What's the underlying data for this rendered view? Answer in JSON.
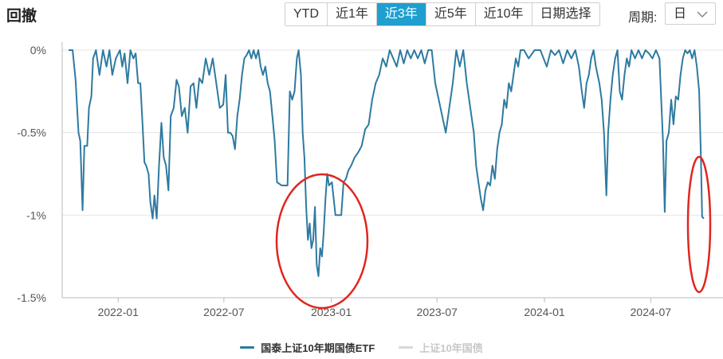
{
  "header": {
    "title": "回撤",
    "range_buttons": [
      {
        "label": "YTD",
        "active": false
      },
      {
        "label": "近1年",
        "active": false
      },
      {
        "label": "近3年",
        "active": true
      },
      {
        "label": "近5年",
        "active": false
      },
      {
        "label": "近10年",
        "active": false
      },
      {
        "label": "日期选择",
        "active": false
      }
    ],
    "period_label": "周期:",
    "period_value": "日"
  },
  "colors": {
    "series": "#2e7aa1",
    "series_inactive": "#d9d9d9",
    "grid": "#e6e6e6",
    "axis": "#bbbbbb",
    "annotation": "#e0261f",
    "active_button": "#1e9fd0"
  },
  "chart_data": {
    "type": "line",
    "title": "",
    "xlabel": "",
    "ylabel": "",
    "x_range": [
      "2021-10-08",
      "2024-09-30"
    ],
    "x_ticks": [
      "2022-01",
      "2022-07",
      "2023-01",
      "2023-07",
      "2024-01",
      "2024-07"
    ],
    "y_ticks": [
      "0%",
      "-0.5%",
      "-1%",
      "-1.5%"
    ],
    "ylim": [
      -1.5,
      0
    ],
    "grid": true,
    "legend_position": "bottom",
    "series": [
      {
        "name": "国泰上证10年期国债ETF",
        "active": true,
        "points": [
          [
            "2021-10-08",
            0
          ],
          [
            "2021-10-15",
            0
          ],
          [
            "2021-10-20",
            -0.18
          ],
          [
            "2021-10-25",
            -0.5
          ],
          [
            "2021-10-28",
            -0.55
          ],
          [
            "2021-11-01",
            -0.97
          ],
          [
            "2021-11-04",
            -0.58
          ],
          [
            "2021-11-09",
            -0.58
          ],
          [
            "2021-11-12",
            -0.35
          ],
          [
            "2021-11-16",
            -0.28
          ],
          [
            "2021-11-19",
            -0.05
          ],
          [
            "2021-11-24",
            0
          ],
          [
            "2021-11-30",
            -0.15
          ],
          [
            "2021-12-06",
            0
          ],
          [
            "2021-12-12",
            -0.1
          ],
          [
            "2021-12-17",
            0
          ],
          [
            "2021-12-22",
            -0.15
          ],
          [
            "2021-12-28",
            -0.05
          ],
          [
            "2022-01-04",
            0
          ],
          [
            "2022-01-08",
            -0.1
          ],
          [
            "2022-01-12",
            -0.02
          ],
          [
            "2022-01-17",
            -0.2
          ],
          [
            "2022-01-22",
            0
          ],
          [
            "2022-01-27",
            -0.05
          ],
          [
            "2022-01-31",
            -0.02
          ],
          [
            "2022-02-04",
            -0.2
          ],
          [
            "2022-02-08",
            -0.2
          ],
          [
            "2022-02-11",
            -0.4
          ],
          [
            "2022-02-15",
            -0.68
          ],
          [
            "2022-02-18",
            -0.7
          ],
          [
            "2022-02-22",
            -0.75
          ],
          [
            "2022-02-25",
            -0.92
          ],
          [
            "2022-03-01",
            -1.02
          ],
          [
            "2022-03-04",
            -0.88
          ],
          [
            "2022-03-08",
            -1.02
          ],
          [
            "2022-03-12",
            -0.7
          ],
          [
            "2022-03-16",
            -0.44
          ],
          [
            "2022-03-20",
            -0.65
          ],
          [
            "2022-03-24",
            -0.7
          ],
          [
            "2022-03-28",
            -0.85
          ],
          [
            "2022-04-01",
            -0.4
          ],
          [
            "2022-04-06",
            -0.35
          ],
          [
            "2022-04-11",
            -0.18
          ],
          [
            "2022-04-15",
            -0.22
          ],
          [
            "2022-04-20",
            -0.4
          ],
          [
            "2022-04-25",
            -0.35
          ],
          [
            "2022-04-30",
            -0.5
          ],
          [
            "2022-05-05",
            -0.22
          ],
          [
            "2022-05-10",
            -0.2
          ],
          [
            "2022-05-15",
            -0.35
          ],
          [
            "2022-05-20",
            -0.17
          ],
          [
            "2022-05-25",
            -0.2
          ],
          [
            "2022-05-31",
            -0.05
          ],
          [
            "2022-06-06",
            -0.15
          ],
          [
            "2022-06-12",
            -0.05
          ],
          [
            "2022-06-18",
            -0.2
          ],
          [
            "2022-06-24",
            -0.35
          ],
          [
            "2022-06-30",
            -0.33
          ],
          [
            "2022-07-04",
            -0.15
          ],
          [
            "2022-07-08",
            -0.5
          ],
          [
            "2022-07-12",
            -0.5
          ],
          [
            "2022-07-16",
            -0.52
          ],
          [
            "2022-07-20",
            -0.6
          ],
          [
            "2022-07-24",
            -0.4
          ],
          [
            "2022-07-28",
            -0.3
          ],
          [
            "2022-08-01",
            -0.15
          ],
          [
            "2022-08-05",
            -0.05
          ],
          [
            "2022-08-09",
            -0.03
          ],
          [
            "2022-08-13",
            0
          ],
          [
            "2022-08-17",
            -0.05
          ],
          [
            "2022-08-21",
            0
          ],
          [
            "2022-08-25",
            -0.05
          ],
          [
            "2022-08-29",
            0
          ],
          [
            "2022-09-02",
            -0.1
          ],
          [
            "2022-09-06",
            -0.15
          ],
          [
            "2022-09-10",
            -0.1
          ],
          [
            "2022-09-14",
            -0.2
          ],
          [
            "2022-09-18",
            -0.25
          ],
          [
            "2022-09-22",
            -0.4
          ],
          [
            "2022-09-26",
            -0.55
          ],
          [
            "2022-09-30",
            -0.8
          ],
          [
            "2022-10-08",
            -0.82
          ],
          [
            "2022-10-18",
            -0.82
          ],
          [
            "2022-10-22",
            -0.25
          ],
          [
            "2022-10-26",
            -0.3
          ],
          [
            "2022-10-30",
            -0.25
          ],
          [
            "2022-11-03",
            -0.05
          ],
          [
            "2022-11-06",
            0
          ],
          [
            "2022-11-10",
            -0.15
          ],
          [
            "2022-11-13",
            -0.5
          ],
          [
            "2022-11-16",
            -0.65
          ],
          [
            "2022-11-19",
            -0.95
          ],
          [
            "2022-11-22",
            -1.15
          ],
          [
            "2022-11-25",
            -1.05
          ],
          [
            "2022-11-28",
            -1.2
          ],
          [
            "2022-12-01",
            -1.15
          ],
          [
            "2022-12-04",
            -0.95
          ],
          [
            "2022-12-07",
            -1.3
          ],
          [
            "2022-12-10",
            -1.37
          ],
          [
            "2022-12-13",
            -1.2
          ],
          [
            "2022-12-16",
            -1.25
          ],
          [
            "2022-12-19",
            -1.1
          ],
          [
            "2022-12-22",
            -0.9
          ],
          [
            "2022-12-25",
            -0.75
          ],
          [
            "2022-12-28",
            -0.82
          ],
          [
            "2023-01-02",
            -0.8
          ],
          [
            "2023-01-05",
            -0.9
          ],
          [
            "2023-01-08",
            -1.0
          ],
          [
            "2023-01-18",
            -1.0
          ],
          [
            "2023-01-22",
            -0.8
          ],
          [
            "2023-01-26",
            -0.78
          ],
          [
            "2023-01-30",
            -0.73
          ],
          [
            "2023-02-04",
            -0.7
          ],
          [
            "2023-02-10",
            -0.65
          ],
          [
            "2023-02-16",
            -0.62
          ],
          [
            "2023-02-22",
            -0.58
          ],
          [
            "2023-02-28",
            -0.48
          ],
          [
            "2023-03-06",
            -0.45
          ],
          [
            "2023-03-12",
            -0.3
          ],
          [
            "2023-03-18",
            -0.2
          ],
          [
            "2023-03-24",
            -0.15
          ],
          [
            "2023-03-30",
            -0.05
          ],
          [
            "2023-04-05",
            -0.1
          ],
          [
            "2023-04-11",
            0
          ],
          [
            "2023-04-17",
            -0.05
          ],
          [
            "2023-04-23",
            -0.1
          ],
          [
            "2023-04-29",
            0
          ],
          [
            "2023-05-05",
            -0.08
          ],
          [
            "2023-05-11",
            0
          ],
          [
            "2023-05-17",
            -0.05
          ],
          [
            "2023-05-23",
            0
          ],
          [
            "2023-05-29",
            -0.05
          ],
          [
            "2023-06-04",
            0
          ],
          [
            "2023-06-10",
            -0.08
          ],
          [
            "2023-06-16",
            0
          ],
          [
            "2023-06-22",
            0
          ],
          [
            "2023-06-28",
            -0.2
          ],
          [
            "2023-07-04",
            -0.3
          ],
          [
            "2023-07-10",
            -0.4
          ],
          [
            "2023-07-16",
            -0.5
          ],
          [
            "2023-07-22",
            -0.35
          ],
          [
            "2023-07-28",
            -0.2
          ],
          [
            "2023-08-03",
            0
          ],
          [
            "2023-08-09",
            -0.1
          ],
          [
            "2023-08-15",
            0
          ],
          [
            "2023-08-21",
            -0.2
          ],
          [
            "2023-08-27",
            -0.35
          ],
          [
            "2023-09-02",
            -0.5
          ],
          [
            "2023-09-06",
            -0.7
          ],
          [
            "2023-09-10",
            -0.8
          ],
          [
            "2023-09-14",
            -0.9
          ],
          [
            "2023-09-18",
            -0.97
          ],
          [
            "2023-09-22",
            -0.85
          ],
          [
            "2023-09-26",
            -0.8
          ],
          [
            "2023-09-30",
            -0.82
          ],
          [
            "2023-10-04",
            -0.7
          ],
          [
            "2023-10-08",
            -0.78
          ],
          [
            "2023-10-12",
            -0.6
          ],
          [
            "2023-10-16",
            -0.5
          ],
          [
            "2023-10-20",
            -0.45
          ],
          [
            "2023-10-24",
            -0.3
          ],
          [
            "2023-10-28",
            -0.35
          ],
          [
            "2023-11-01",
            -0.2
          ],
          [
            "2023-11-05",
            -0.25
          ],
          [
            "2023-11-09",
            -0.15
          ],
          [
            "2023-11-13",
            -0.05
          ],
          [
            "2023-11-17",
            -0.1
          ],
          [
            "2023-11-21",
            0
          ],
          [
            "2023-11-27",
            0
          ],
          [
            "2023-12-05",
            -0.05
          ],
          [
            "2023-12-15",
            0
          ],
          [
            "2023-12-25",
            0
          ],
          [
            "2024-01-05",
            -0.1
          ],
          [
            "2024-01-12",
            0
          ],
          [
            "2024-01-19",
            -0.03
          ],
          [
            "2024-01-26",
            0
          ],
          [
            "2024-02-02",
            -0.08
          ],
          [
            "2024-02-09",
            0
          ],
          [
            "2024-02-16",
            -0.05
          ],
          [
            "2024-02-23",
            0
          ],
          [
            "2024-02-29",
            -0.1
          ],
          [
            "2024-03-05",
            -0.25
          ],
          [
            "2024-03-09",
            -0.35
          ],
          [
            "2024-03-13",
            -0.2
          ],
          [
            "2024-03-17",
            -0.15
          ],
          [
            "2024-03-21",
            -0.05
          ],
          [
            "2024-03-25",
            0
          ],
          [
            "2024-03-29",
            -0.1
          ],
          [
            "2024-04-04",
            -0.2
          ],
          [
            "2024-04-08",
            -0.3
          ],
          [
            "2024-04-12",
            -0.5
          ],
          [
            "2024-04-16",
            -0.88
          ],
          [
            "2024-04-19",
            -0.5
          ],
          [
            "2024-04-23",
            -0.3
          ],
          [
            "2024-04-27",
            -0.15
          ],
          [
            "2024-05-01",
            -0.05
          ],
          [
            "2024-05-05",
            0
          ],
          [
            "2024-05-09",
            -0.25
          ],
          [
            "2024-05-13",
            -0.3
          ],
          [
            "2024-05-17",
            -0.15
          ],
          [
            "2024-05-21",
            -0.05
          ],
          [
            "2024-05-25",
            -0.1
          ],
          [
            "2024-05-29",
            0
          ],
          [
            "2024-06-04",
            -0.05
          ],
          [
            "2024-06-10",
            0
          ],
          [
            "2024-06-16",
            -0.05
          ],
          [
            "2024-06-22",
            0
          ],
          [
            "2024-06-28",
            -0.02
          ],
          [
            "2024-07-04",
            -0.05
          ],
          [
            "2024-07-10",
            0
          ],
          [
            "2024-07-16",
            -0.05
          ],
          [
            "2024-07-22",
            -0.55
          ],
          [
            "2024-07-25",
            -0.98
          ],
          [
            "2024-07-28",
            -0.55
          ],
          [
            "2024-08-01",
            -0.5
          ],
          [
            "2024-08-05",
            -0.3
          ],
          [
            "2024-08-09",
            -0.45
          ],
          [
            "2024-08-13",
            -0.28
          ],
          [
            "2024-08-17",
            -0.3
          ],
          [
            "2024-08-21",
            -0.15
          ],
          [
            "2024-08-25",
            -0.05
          ],
          [
            "2024-08-29",
            0
          ],
          [
            "2024-09-02",
            -0.02
          ],
          [
            "2024-09-06",
            0
          ],
          [
            "2024-09-10",
            -0.05
          ],
          [
            "2024-09-14",
            0
          ],
          [
            "2024-09-18",
            -0.1
          ],
          [
            "2024-09-22",
            -0.25
          ],
          [
            "2024-09-25",
            -0.65
          ],
          [
            "2024-09-27",
            -1.01
          ],
          [
            "2024-09-30",
            -1.02
          ]
        ]
      },
      {
        "name": "上证10年国债",
        "active": false,
        "points": []
      }
    ]
  }
}
